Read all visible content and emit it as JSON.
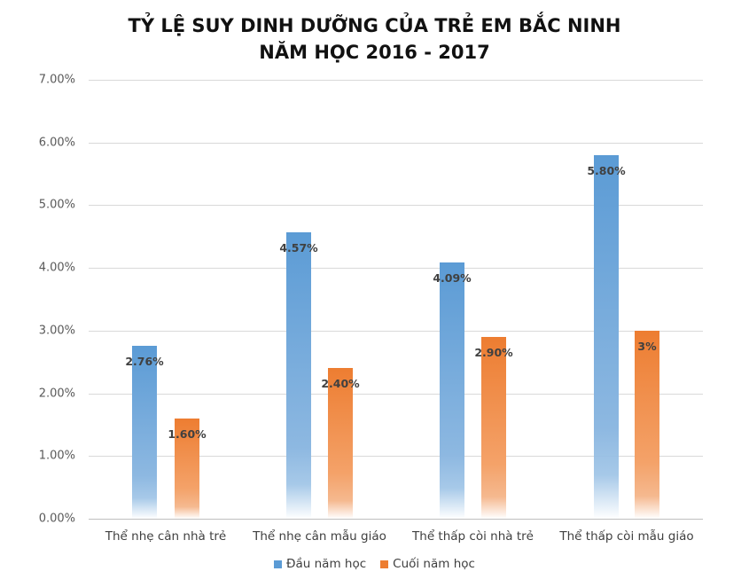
{
  "chart_data": {
    "type": "bar",
    "title": "TỶ LỆ SUY DINH DƯỠNG CỦA TRẺ EM BẮC NINH",
    "subtitle": "NĂM HỌC 2016 - 2017",
    "categories": [
      "Thể nhẹ cân nhà trẻ",
      "Thể nhẹ cân mẫu giáo",
      "Thể thấp còi nhà trẻ",
      "Thể thấp còi mẫu giáo"
    ],
    "series": [
      {
        "name": "Đầu năm học",
        "color": "#5b9bd5",
        "values": [
          2.76,
          4.57,
          4.09,
          5.8
        ],
        "labels": [
          "2.76%",
          "4.57%",
          "4.09%",
          "5.80%"
        ]
      },
      {
        "name": "Cuối năm học",
        "color": "#ed7d31",
        "values": [
          1.6,
          2.4,
          2.9,
          3.0
        ],
        "labels": [
          "1.60%",
          "2.40%",
          "2.90%",
          "3%"
        ]
      }
    ],
    "xlabel": "",
    "ylabel": "",
    "ylim": [
      0,
      7
    ],
    "yticks": [
      "0.00%",
      "1.00%",
      "2.00%",
      "3.00%",
      "4.00%",
      "5.00%",
      "6.00%",
      "7.00%"
    ],
    "grid": true,
    "legend_position": "bottom"
  }
}
